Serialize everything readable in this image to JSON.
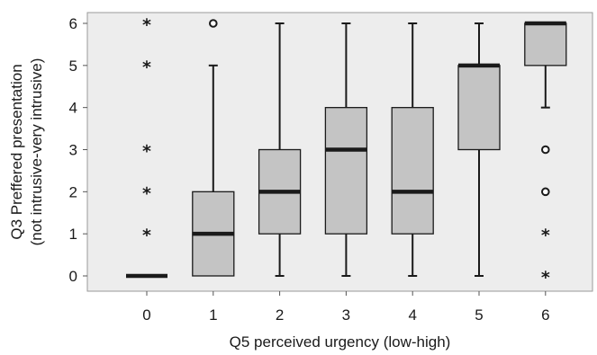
{
  "chart_data": {
    "type": "boxplot",
    "title": "",
    "xlabel": "Q5 perceived urgency (low-high)",
    "ylabel_line1": "Q3 Preffered presentation",
    "ylabel_line2": "(not intrusive-very intrusive)",
    "ylim": [
      0,
      6
    ],
    "x_ticks": [
      "0",
      "1",
      "2",
      "3",
      "4",
      "5",
      "6"
    ],
    "y_ticks": [
      "0",
      "1",
      "2",
      "3",
      "4",
      "5",
      "6"
    ],
    "grid": false,
    "colors": {
      "box_fill": "#c4c4c4",
      "plot_background": "#ededed",
      "stroke": "#1a1a1a"
    },
    "boxes": [
      {
        "category": "0",
        "whisker_low": 0,
        "q1": 0,
        "median": 0,
        "q3": 0,
        "whisker_high": 0,
        "outliers": [],
        "extremes": [
          1,
          2,
          3,
          5,
          6
        ]
      },
      {
        "category": "1",
        "whisker_low": 0,
        "q1": 0,
        "median": 1,
        "q3": 2,
        "whisker_high": 5,
        "outliers": [
          6
        ],
        "extremes": []
      },
      {
        "category": "2",
        "whisker_low": 0,
        "q1": 1,
        "median": 2,
        "q3": 3,
        "whisker_high": 6,
        "outliers": [],
        "extremes": []
      },
      {
        "category": "3",
        "whisker_low": 0,
        "q1": 1,
        "median": 3,
        "q3": 4,
        "whisker_high": 6,
        "outliers": [],
        "extremes": []
      },
      {
        "category": "4",
        "whisker_low": 0,
        "q1": 1,
        "median": 2,
        "q3": 4,
        "whisker_high": 6,
        "outliers": [],
        "extremes": []
      },
      {
        "category": "5",
        "whisker_low": 0,
        "q1": 3,
        "median": 5,
        "q3": 5,
        "whisker_high": 6,
        "outliers": [],
        "extremes": []
      },
      {
        "category": "6",
        "whisker_low": 4,
        "q1": 5,
        "median": 6,
        "q3": 6,
        "whisker_high": 6,
        "outliers": [
          2,
          3
        ],
        "extremes": [
          0,
          1
        ]
      }
    ]
  }
}
